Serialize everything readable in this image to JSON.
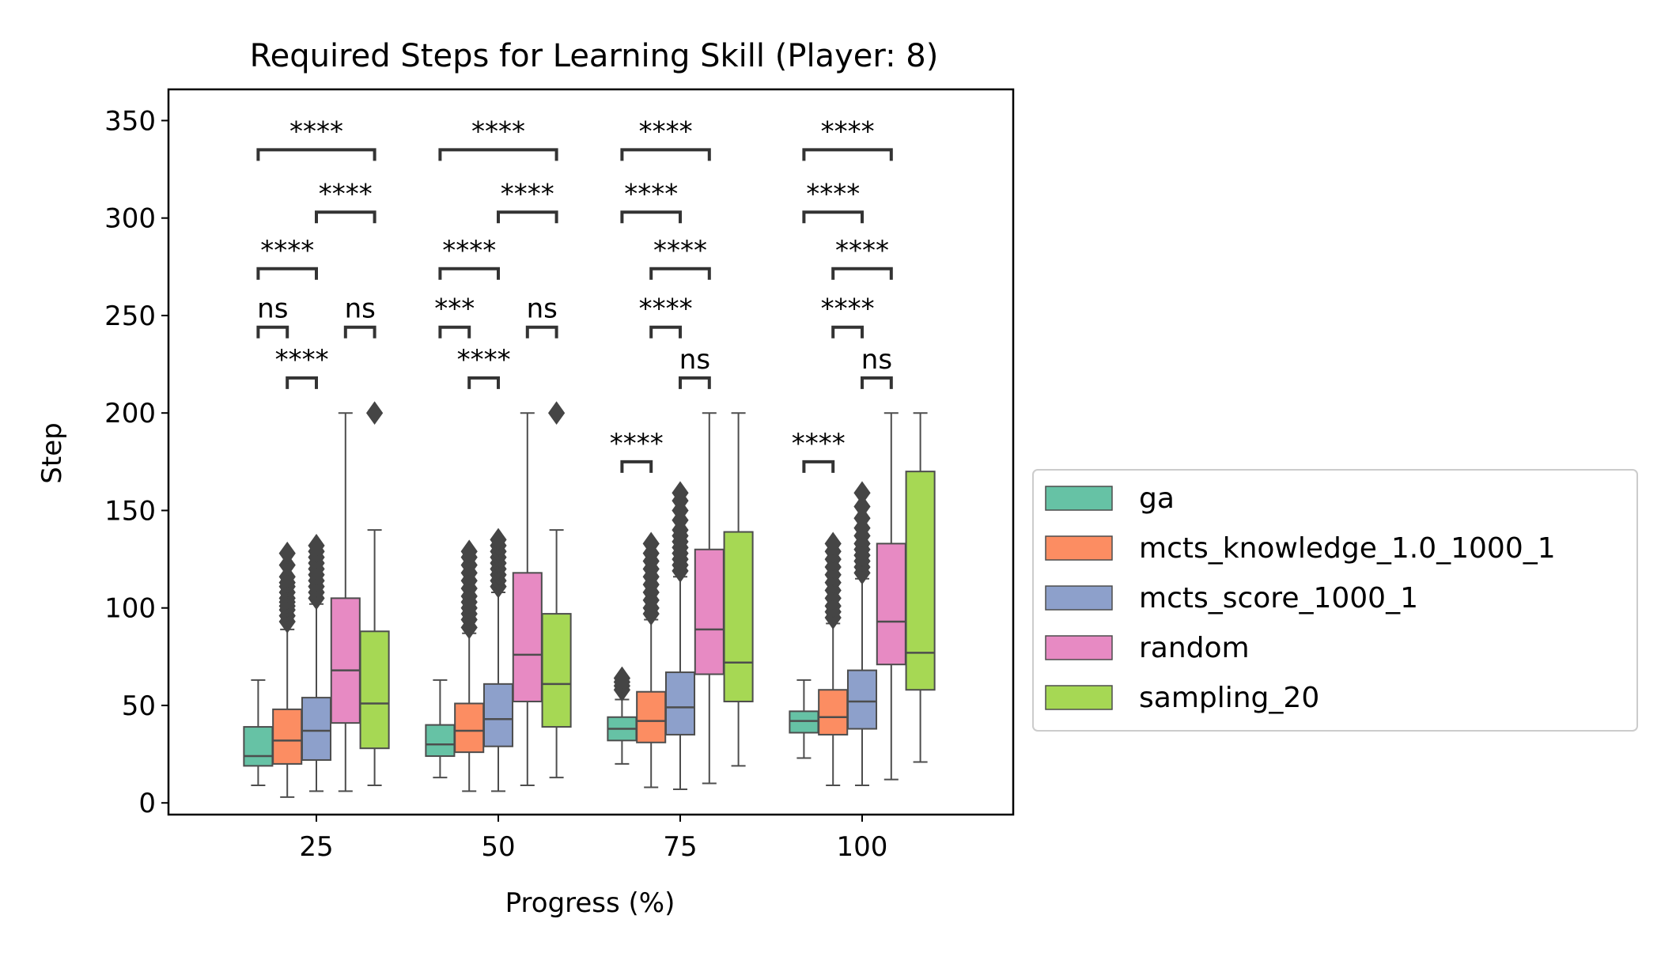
{
  "chart_data": {
    "type": "box",
    "title": "Required Steps for Learning Skill (Player: 8)",
    "xlabel": "Progress (%)",
    "ylabel": "Step",
    "categories": [
      "25",
      "50",
      "75",
      "100"
    ],
    "yticks": [
      0,
      50,
      100,
      150,
      200,
      250,
      300,
      350
    ],
    "ylim": [
      -6,
      366
    ],
    "grid": false,
    "legend_position": "right, outside plot",
    "series": [
      {
        "name": "ga",
        "color": "#66c2a5",
        "boxes": [
          {
            "whislo": 9,
            "q1": 19,
            "med": 24,
            "q3": 39,
            "whishi": 63,
            "fliers": []
          },
          {
            "whislo": 13,
            "q1": 24,
            "med": 30,
            "q3": 40,
            "whishi": 63,
            "fliers": []
          },
          {
            "whislo": 20,
            "q1": 32,
            "med": 38,
            "q3": 44,
            "whishi": 53,
            "fliers": [
              58,
              60,
              62,
              64
            ]
          },
          {
            "whislo": 23,
            "q1": 36,
            "med": 42,
            "q3": 47,
            "whishi": 63,
            "fliers": []
          }
        ]
      },
      {
        "name": "mcts_knowledge_1.0_1000_1",
        "color": "#fc8d62",
        "boxes": [
          {
            "whislo": 3,
            "q1": 20,
            "med": 32,
            "q3": 48,
            "whishi": 89,
            "fliers": [
              93,
              96,
              99,
              101,
              103,
              105,
              108,
              111,
              113,
              116,
              122,
              128
            ]
          },
          {
            "whislo": 6,
            "q1": 26,
            "med": 37,
            "q3": 51,
            "whishi": 87,
            "fliers": [
              90,
              94,
              97,
              100,
              103,
              106,
              110,
              114,
              118,
              122,
              126,
              129
            ]
          },
          {
            "whislo": 8,
            "q1": 31,
            "med": 42,
            "q3": 57,
            "whishi": 94,
            "fliers": [
              97,
              100,
              104,
              108,
              112,
              116,
              120,
              124,
              128,
              133
            ]
          },
          {
            "whislo": 9,
            "q1": 35,
            "med": 44,
            "q3": 58,
            "whishi": 92,
            "fliers": [
              95,
              98,
              101,
              105,
              109,
              113,
              117,
              121,
              125,
              129,
              133
            ]
          }
        ]
      },
      {
        "name": "mcts_score_1000_1",
        "color": "#8da0cb",
        "boxes": [
          {
            "whislo": 6,
            "q1": 22,
            "med": 37,
            "q3": 54,
            "whishi": 102,
            "fliers": [
              105,
              108,
              111,
              114,
              117,
              120,
              123,
              126,
              129,
              132
            ]
          },
          {
            "whislo": 6,
            "q1": 29,
            "med": 43,
            "q3": 61,
            "whishi": 108,
            "fliers": [
              111,
              114,
              117,
              120,
              123,
              126,
              129,
              132,
              135
            ]
          },
          {
            "whislo": 7,
            "q1": 35,
            "med": 49,
            "q3": 67,
            "whishi": 116,
            "fliers": [
              119,
              122,
              125,
              128,
              131,
              134,
              137,
              140,
              145,
              150,
              155,
              159
            ]
          },
          {
            "whislo": 9,
            "q1": 38,
            "med": 52,
            "q3": 68,
            "whishi": 115,
            "fliers": [
              118,
              121,
              124,
              127,
              130,
              133,
              137,
              141,
              146,
              152,
              159
            ]
          }
        ]
      },
      {
        "name": "random",
        "color": "#e78ac3",
        "boxes": [
          {
            "whislo": 6,
            "q1": 41,
            "med": 68,
            "q3": 105,
            "whishi": 200,
            "fliers": []
          },
          {
            "whislo": 9,
            "q1": 52,
            "med": 76,
            "q3": 118,
            "whishi": 200,
            "fliers": []
          },
          {
            "whislo": 10,
            "q1": 66,
            "med": 89,
            "q3": 130,
            "whishi": 200,
            "fliers": []
          },
          {
            "whislo": 12,
            "q1": 71,
            "med": 93,
            "q3": 133,
            "whishi": 200,
            "fliers": []
          }
        ]
      },
      {
        "name": "sampling_20",
        "color": "#a6d854",
        "boxes": [
          {
            "whislo": 9,
            "q1": 28,
            "med": 51,
            "q3": 88,
            "whishi": 140,
            "fliers": [
              200
            ]
          },
          {
            "whislo": 13,
            "q1": 39,
            "med": 61,
            "q3": 97,
            "whishi": 140,
            "fliers": [
              200
            ]
          },
          {
            "whislo": 19,
            "q1": 52,
            "med": 72,
            "q3": 139,
            "whishi": 200,
            "fliers": []
          },
          {
            "whislo": 21,
            "q1": 58,
            "med": 77,
            "q3": 170,
            "whishi": 200,
            "fliers": []
          }
        ]
      }
    ],
    "annotations": [
      {
        "group": 0,
        "a": 0,
        "b": 4,
        "y": 335,
        "text": "****"
      },
      {
        "group": 0,
        "a": 2,
        "b": 4,
        "y": 303,
        "text": "****"
      },
      {
        "group": 0,
        "a": 0,
        "b": 2,
        "y": 274,
        "text": "****"
      },
      {
        "group": 0,
        "a": 0,
        "b": 1,
        "y": 244,
        "text": "ns"
      },
      {
        "group": 0,
        "a": 3,
        "b": 4,
        "y": 244,
        "text": "ns"
      },
      {
        "group": 0,
        "a": 1,
        "b": 2,
        "y": 218,
        "text": "****"
      },
      {
        "group": 1,
        "a": 0,
        "b": 4,
        "y": 335,
        "text": "****"
      },
      {
        "group": 1,
        "a": 2,
        "b": 4,
        "y": 303,
        "text": "****"
      },
      {
        "group": 1,
        "a": 0,
        "b": 2,
        "y": 274,
        "text": "****"
      },
      {
        "group": 1,
        "a": 0,
        "b": 1,
        "y": 244,
        "text": "***"
      },
      {
        "group": 1,
        "a": 3,
        "b": 4,
        "y": 244,
        "text": "ns"
      },
      {
        "group": 1,
        "a": 1,
        "b": 2,
        "y": 218,
        "text": "****"
      },
      {
        "group": 2,
        "a": 0,
        "b": 3,
        "y": 335,
        "text": "****"
      },
      {
        "group": 2,
        "a": 0,
        "b": 2,
        "y": 303,
        "text": "****"
      },
      {
        "group": 2,
        "a": 1,
        "b": 3,
        "y": 274,
        "text": "****"
      },
      {
        "group": 2,
        "a": 1,
        "b": 2,
        "y": 244,
        "text": "****"
      },
      {
        "group": 2,
        "a": 2,
        "b": 3,
        "y": 218,
        "text": "ns"
      },
      {
        "group": 2,
        "a": 0,
        "b": 1,
        "y": 175,
        "text": "****"
      },
      {
        "group": 3,
        "a": 0,
        "b": 3,
        "y": 335,
        "text": "****"
      },
      {
        "group": 3,
        "a": 0,
        "b": 2,
        "y": 303,
        "text": "****"
      },
      {
        "group": 3,
        "a": 1,
        "b": 3,
        "y": 274,
        "text": "****"
      },
      {
        "group": 3,
        "a": 1,
        "b": 2,
        "y": 244,
        "text": "****"
      },
      {
        "group": 3,
        "a": 2,
        "b": 3,
        "y": 218,
        "text": "ns"
      },
      {
        "group": 3,
        "a": 0,
        "b": 1,
        "y": 175,
        "text": "****"
      }
    ]
  }
}
